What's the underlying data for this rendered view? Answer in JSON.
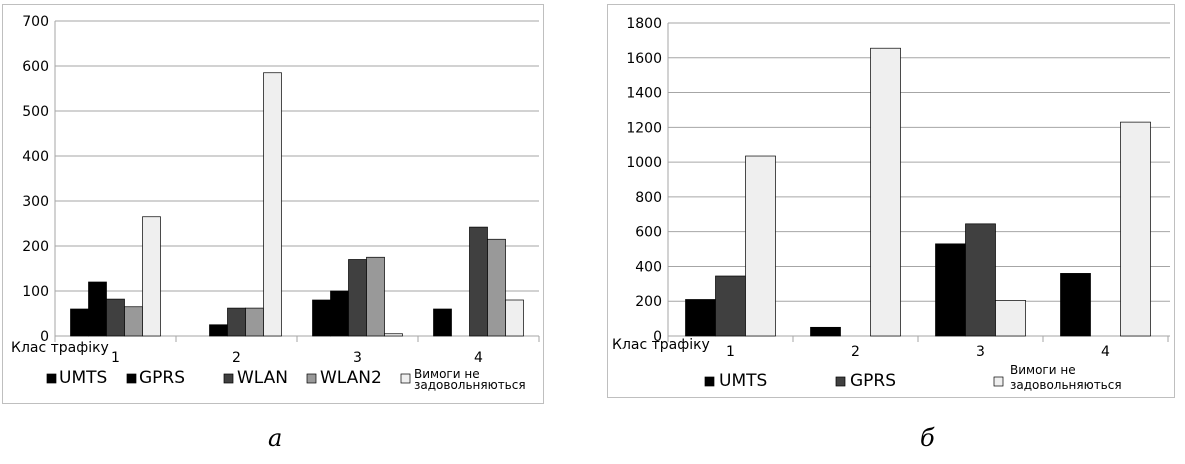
{
  "chart_data": [
    {
      "type": "bar",
      "panel_label": "а",
      "xlabel": "Клас трафіку",
      "categories": [
        "1",
        "2",
        "3",
        "4"
      ],
      "ylim": [
        0,
        700
      ],
      "yticks": [
        0,
        100,
        200,
        300,
        400,
        500,
        600,
        700
      ],
      "grid": true,
      "legend_position": "bottom",
      "series": [
        {
          "name": "UMTS",
          "color": "#000000",
          "values": [
            60,
            0,
            80,
            60
          ]
        },
        {
          "name": "GPRS",
          "color": "#000000",
          "values": [
            120,
            25,
            100,
            0
          ]
        },
        {
          "name": "WLAN",
          "color": "#404040",
          "values": [
            82,
            62,
            170,
            242
          ]
        },
        {
          "name": "WLAN2",
          "color": "#999999",
          "values": [
            65,
            62,
            175,
            215
          ]
        },
        {
          "name": "Вимоги не задовольняються",
          "color": "#efefef",
          "values": [
            265,
            585,
            5,
            80
          ]
        }
      ]
    },
    {
      "type": "bar",
      "panel_label": "б",
      "xlabel": "Клас трафіку",
      "categories": [
        "1",
        "2",
        "3",
        "4"
      ],
      "ylim": [
        0,
        1800
      ],
      "yticks": [
        0,
        200,
        400,
        600,
        800,
        1000,
        1200,
        1400,
        1600,
        1800
      ],
      "grid": true,
      "legend_position": "bottom",
      "series": [
        {
          "name": "UMTS",
          "color": "#000000",
          "values": [
            210,
            50,
            530,
            360
          ]
        },
        {
          "name": "GPRS",
          "color": "#404040",
          "values": [
            345,
            0,
            645,
            0
          ]
        },
        {
          "name": "Вимоги не задовольняються",
          "color": "#efefef",
          "values": [
            1035,
            1655,
            205,
            1230
          ]
        }
      ]
    }
  ]
}
